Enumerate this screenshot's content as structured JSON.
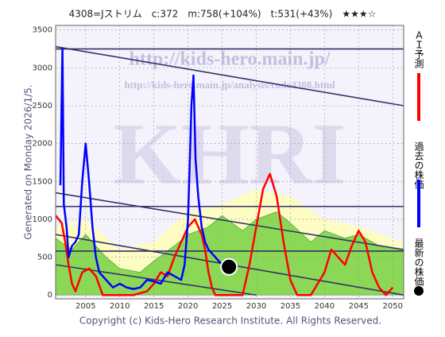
{
  "chart_data": {
    "type": "line",
    "title": "4308=Jストリム　c:372　m:758(+104%)　t:531(+43%)　★★★☆",
    "side_note": "Generated on Monday 2026/1/5.",
    "footer": "Copyright (c) Kids-Hero Research Institute. All Rights Reserved.",
    "watermarks": [
      "http://kids-hero.main.jp/",
      "http://kids-hero.main.jp/analysis/code4308.html",
      "KHRI"
    ],
    "xlim": [
      2000.6,
      2051.6
    ],
    "ylim": [
      -50,
      3560
    ],
    "xticks": [
      2005,
      2010,
      2015,
      2020,
      2025,
      2030,
      2035,
      2040,
      2045,
      2050
    ],
    "yticks": [
      0,
      500,
      1000,
      1500,
      2000,
      2500,
      3000,
      3500
    ],
    "grid": true,
    "bands": [
      {
        "color": "#ffffb0",
        "x": [
          2000.6,
          2005,
          2010,
          2015,
          2020,
          2025,
          2030,
          2035,
          2040,
          2045,
          2051.6
        ],
        "upper": [
          900,
          1000,
          600,
          700,
          1100,
          1200,
          1400,
          1300,
          1000,
          900,
          700
        ],
        "lower": [
          0,
          0,
          0,
          0,
          0,
          0,
          0,
          0,
          0,
          0,
          0
        ]
      },
      {
        "color": "#66cc33",
        "x": [
          2000.6,
          2003,
          2005,
          2008,
          2010,
          2013,
          2015,
          2018,
          2020,
          2023,
          2025,
          2028,
          2030,
          2033,
          2035,
          2038,
          2040,
          2043,
          2045,
          2048,
          2051.6
        ],
        "upper": [
          750,
          600,
          800,
          500,
          350,
          300,
          450,
          650,
          800,
          900,
          1050,
          850,
          1000,
          1100,
          950,
          700,
          850,
          750,
          800,
          650,
          600
        ],
        "lower": [
          0,
          0,
          0,
          0,
          0,
          0,
          0,
          0,
          0,
          0,
          0,
          0,
          0,
          0,
          0,
          0,
          0,
          0,
          0,
          0,
          0
        ]
      }
    ],
    "trend_lines": [
      {
        "color": "#333366",
        "x": [
          2000.6,
          2051.6
        ],
        "values": [
          3280,
          2500
        ]
      },
      {
        "color": "#333366",
        "x": [
          2000.6,
          2051.6
        ],
        "values": [
          3250,
          3250
        ]
      },
      {
        "color": "#333366",
        "x": [
          2000.6,
          2051.6
        ],
        "values": [
          1350,
          600
        ]
      },
      {
        "color": "#333366",
        "x": [
          2000.6,
          2051.6
        ],
        "values": [
          1170,
          1170
        ]
      },
      {
        "color": "#333366",
        "x": [
          2000.6,
          2051.6
        ],
        "values": [
          800,
          0
        ]
      },
      {
        "color": "#333366",
        "x": [
          2000.6,
          2051.6
        ],
        "values": [
          580,
          580
        ]
      },
      {
        "color": "#333366",
        "x": [
          2000.6,
          2030
        ],
        "values": [
          400,
          0
        ]
      }
    ],
    "series": [
      {
        "name": "ＡＩ予測",
        "color": "#ff0000",
        "x": [
          2000.6,
          2001.5,
          2002,
          2002.5,
          2003,
          2003.5,
          2004.5,
          2005.5,
          2006.5,
          2007.5,
          2012,
          2014,
          2015,
          2016,
          2017,
          2018,
          2019,
          2020,
          2021,
          2022,
          2022.5,
          2023,
          2023.5,
          2024,
          2028,
          2029,
          2030,
          2031,
          2032,
          2033,
          2034,
          2035,
          2036,
          2038,
          2040,
          2041,
          2042,
          2043,
          2044,
          2045,
          2046,
          2047,
          2048,
          2049,
          2050
        ],
        "values": [
          1050,
          950,
          700,
          400,
          150,
          50,
          300,
          350,
          250,
          0,
          0,
          50,
          150,
          300,
          250,
          500,
          700,
          900,
          1000,
          800,
          600,
          300,
          100,
          0,
          0,
          400,
          900,
          1400,
          1600,
          1300,
          700,
          200,
          0,
          0,
          300,
          600,
          500,
          400,
          650,
          850,
          700,
          300,
          100,
          0,
          100
        ]
      },
      {
        "name": "過去の株価",
        "color": "#0000ff",
        "x": [
          2001.3,
          2001.6,
          2001.8,
          2002.2,
          2002.5,
          2003,
          2003.5,
          2004,
          2004.5,
          2005,
          2005.5,
          2006,
          2006.5,
          2007,
          2008,
          2009,
          2010,
          2011,
          2012,
          2013,
          2014,
          2015,
          2016,
          2017,
          2018,
          2019,
          2019.5,
          2020,
          2020.5,
          2020.8,
          2021.1,
          2021.5,
          2022,
          2022.5,
          2023,
          2024,
          2025,
          2025.5
        ],
        "values": [
          1450,
          3250,
          1200,
          900,
          500,
          650,
          700,
          800,
          1500,
          2000,
          1500,
          900,
          500,
          300,
          200,
          100,
          150,
          100,
          80,
          100,
          200,
          180,
          150,
          300,
          250,
          200,
          400,
          1000,
          2500,
          2900,
          1800,
          1300,
          900,
          700,
          600,
          500,
          400,
          372
        ]
      },
      {
        "name": "最新の株価",
        "color": "#000000",
        "marker": "circle",
        "x": [
          2026
        ],
        "values": [
          372
        ]
      }
    ]
  }
}
